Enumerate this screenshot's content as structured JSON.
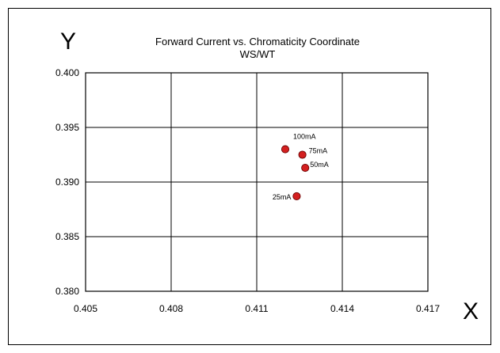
{
  "chart_data": {
    "type": "scatter",
    "title": "Forward Current vs. Chromaticity Coordinate",
    "subtitle": "WS/WT",
    "xlabel": "X",
    "ylabel": "Y",
    "xlim": [
      0.405,
      0.417
    ],
    "ylim": [
      0.38,
      0.4
    ],
    "x_ticks": [
      "0.405",
      "0.408",
      "0.411",
      "0.414",
      "0.417"
    ],
    "y_ticks": [
      "0.400",
      "0.395",
      "0.390",
      "0.385",
      "0.380"
    ],
    "grid": true,
    "marker_color": "#d42020",
    "points": [
      {
        "label": "100mA",
        "x": 0.412,
        "y": 0.393
      },
      {
        "label": "75mA",
        "x": 0.4126,
        "y": 0.3925
      },
      {
        "label": "50mA",
        "x": 0.4127,
        "y": 0.3913
      },
      {
        "label": "25mA",
        "x": 0.4124,
        "y": 0.3887
      }
    ]
  }
}
